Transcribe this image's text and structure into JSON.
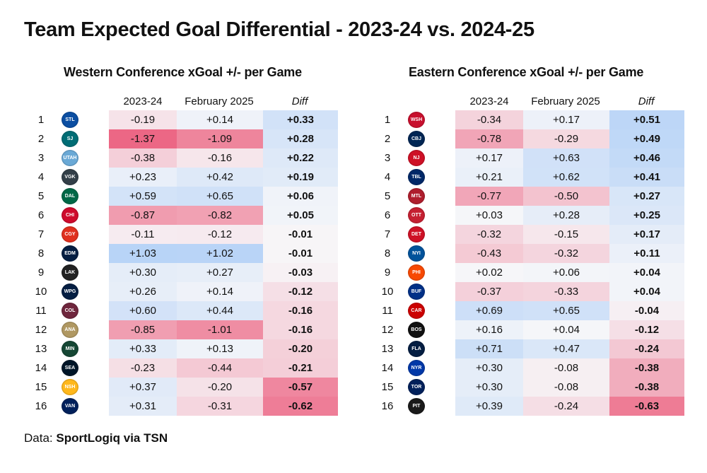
{
  "title": "Team Expected Goal Differential - 2023-24 vs. 2024-25",
  "footer": {
    "label": "Data:",
    "source": "SportLogiq via TSN"
  },
  "chart_data": [
    {
      "type": "table",
      "title": "Western Conference xGoal +/- per Game",
      "columns": [
        "2023-24",
        "February 2025",
        "Diff"
      ],
      "rows": [
        {
          "rank": "1",
          "team": "St. Louis Blues",
          "logo_text": "STL",
          "logo_color": "#0b4ea2",
          "v1": "-0.19",
          "v2": "+0.14",
          "diff": "+0.33"
        },
        {
          "rank": "2",
          "team": "San Jose Sharks",
          "logo_text": "SJ",
          "logo_color": "#006d75",
          "v1": "-1.37",
          "v2": "-1.09",
          "diff": "+0.28"
        },
        {
          "rank": "3",
          "team": "Utah Hockey Club",
          "logo_text": "UTAH",
          "logo_color": "#6aa9d6",
          "v1": "-0.38",
          "v2": "-0.16",
          "diff": "+0.22"
        },
        {
          "rank": "4",
          "team": "Vegas Golden Knights",
          "logo_text": "VGK",
          "logo_color": "#333f48",
          "v1": "+0.23",
          "v2": "+0.42",
          "diff": "+0.19"
        },
        {
          "rank": "5",
          "team": "Dallas Stars",
          "logo_text": "DAL",
          "logo_color": "#006847",
          "v1": "+0.59",
          "v2": "+0.65",
          "diff": "+0.06"
        },
        {
          "rank": "6",
          "team": "Chicago Blackhawks",
          "logo_text": "CHI",
          "logo_color": "#cf0a2c",
          "v1": "-0.87",
          "v2": "-0.82",
          "diff": "+0.05"
        },
        {
          "rank": "7",
          "team": "Calgary Flames",
          "logo_text": "CGY",
          "logo_color": "#e0301e",
          "v1": "-0.11",
          "v2": "-0.12",
          "diff": "-0.01"
        },
        {
          "rank": "8",
          "team": "Edmonton Oilers",
          "logo_text": "EDM",
          "logo_color": "#041e42",
          "v1": "+1.03",
          "v2": "+1.02",
          "diff": "-0.01"
        },
        {
          "rank": "9",
          "team": "Los Angeles Kings",
          "logo_text": "LAK",
          "logo_color": "#222222",
          "v1": "+0.30",
          "v2": "+0.27",
          "diff": "-0.03"
        },
        {
          "rank": "10",
          "team": "Winnipeg Jets",
          "logo_text": "WPG",
          "logo_color": "#041e42",
          "v1": "+0.26",
          "v2": "+0.14",
          "diff": "-0.12"
        },
        {
          "rank": "11",
          "team": "Colorado Avalanche",
          "logo_text": "COL",
          "logo_color": "#6f263d",
          "v1": "+0.60",
          "v2": "+0.44",
          "diff": "-0.16"
        },
        {
          "rank": "12",
          "team": "Anaheim Ducks",
          "logo_text": "ANA",
          "logo_color": "#b09862",
          "v1": "-0.85",
          "v2": "-1.01",
          "diff": "-0.16"
        },
        {
          "rank": "13",
          "team": "Minnesota Wild",
          "logo_text": "MIN",
          "logo_color": "#154734",
          "v1": "+0.33",
          "v2": "+0.13",
          "diff": "-0.20"
        },
        {
          "rank": "14",
          "team": "Seattle Kraken",
          "logo_text": "SEA",
          "logo_color": "#001628",
          "v1": "-0.23",
          "v2": "-0.44",
          "diff": "-0.21"
        },
        {
          "rank": "15",
          "team": "Nashville Predators",
          "logo_text": "NSH",
          "logo_color": "#ffb81c",
          "v1": "+0.37",
          "v2": "-0.20",
          "diff": "-0.57"
        },
        {
          "rank": "16",
          "team": "Vancouver Canucks",
          "logo_text": "VAN",
          "logo_color": "#00205b",
          "v1": "+0.31",
          "v2": "-0.31",
          "diff": "-0.62"
        }
      ]
    },
    {
      "type": "table",
      "title": "Eastern Conference xGoal +/- per Game",
      "columns": [
        "2023-24",
        "February 2025",
        "Diff"
      ],
      "rows": [
        {
          "rank": "1",
          "team": "Washington Capitals",
          "logo_text": "WSH",
          "logo_color": "#c8102e",
          "v1": "-0.34",
          "v2": "+0.17",
          "diff": "+0.51"
        },
        {
          "rank": "2",
          "team": "Columbus Blue Jackets",
          "logo_text": "CBJ",
          "logo_color": "#002654",
          "v1": "-0.78",
          "v2": "-0.29",
          "diff": "+0.49"
        },
        {
          "rank": "3",
          "team": "New Jersey Devils",
          "logo_text": "NJ",
          "logo_color": "#ce1126",
          "v1": "+0.17",
          "v2": "+0.63",
          "diff": "+0.46"
        },
        {
          "rank": "4",
          "team": "Tampa Bay Lightning",
          "logo_text": "TBL",
          "logo_color": "#002868",
          "v1": "+0.21",
          "v2": "+0.62",
          "diff": "+0.41"
        },
        {
          "rank": "5",
          "team": "Montreal Canadiens",
          "logo_text": "MTL",
          "logo_color": "#af1e2d",
          "v1": "-0.77",
          "v2": "-0.50",
          "diff": "+0.27"
        },
        {
          "rank": "6",
          "team": "Ottawa Senators",
          "logo_text": "OTT",
          "logo_color": "#c52032",
          "v1": "+0.03",
          "v2": "+0.28",
          "diff": "+0.25"
        },
        {
          "rank": "7",
          "team": "Detroit Red Wings",
          "logo_text": "DET",
          "logo_color": "#ce1126",
          "v1": "-0.32",
          "v2": "-0.15",
          "diff": "+0.17"
        },
        {
          "rank": "8",
          "team": "New York Islanders",
          "logo_text": "NYI",
          "logo_color": "#00539b",
          "v1": "-0.43",
          "v2": "-0.32",
          "diff": "+0.11"
        },
        {
          "rank": "9",
          "team": "Philadelphia Flyers",
          "logo_text": "PHI",
          "logo_color": "#f74902",
          "v1": "+0.02",
          "v2": "+0.06",
          "diff": "+0.04"
        },
        {
          "rank": "10",
          "team": "Buffalo Sabres",
          "logo_text": "BUF",
          "logo_color": "#003087",
          "v1": "-0.37",
          "v2": "-0.33",
          "diff": "+0.04"
        },
        {
          "rank": "11",
          "team": "Carolina Hurricanes",
          "logo_text": "CAR",
          "logo_color": "#cc0000",
          "v1": "+0.69",
          "v2": "+0.65",
          "diff": "-0.04"
        },
        {
          "rank": "12",
          "team": "Boston Bruins",
          "logo_text": "BOS",
          "logo_color": "#111111",
          "v1": "+0.16",
          "v2": "+0.04",
          "diff": "-0.12"
        },
        {
          "rank": "13",
          "team": "Florida Panthers",
          "logo_text": "FLA",
          "logo_color": "#041e42",
          "v1": "+0.71",
          "v2": "+0.47",
          "diff": "-0.24"
        },
        {
          "rank": "14",
          "team": "New York Rangers",
          "logo_text": "NYR",
          "logo_color": "#0038a8",
          "v1": "+0.30",
          "v2": "-0.08",
          "diff": "-0.38"
        },
        {
          "rank": "15",
          "team": "Toronto Maple Leafs",
          "logo_text": "TOR",
          "logo_color": "#00205b",
          "v1": "+0.30",
          "v2": "-0.08",
          "diff": "-0.38"
        },
        {
          "rank": "16",
          "team": "Pittsburgh Penguins",
          "logo_text": "PIT",
          "logo_color": "#1a1a1a",
          "v1": "+0.39",
          "v2": "-0.24",
          "diff": "-0.63"
        }
      ]
    }
  ]
}
